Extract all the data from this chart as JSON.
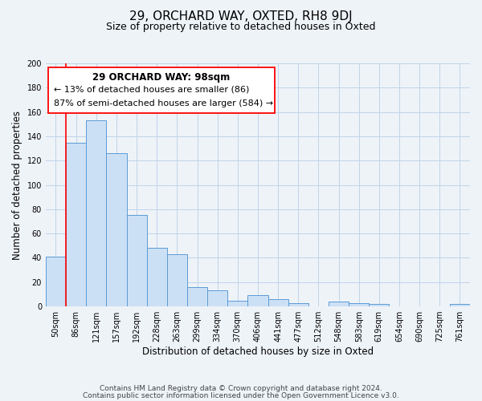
{
  "title": "29, ORCHARD WAY, OXTED, RH8 9DJ",
  "subtitle": "Size of property relative to detached houses in Oxted",
  "xlabel": "Distribution of detached houses by size in Oxted",
  "ylabel": "Number of detached properties",
  "categories": [
    "50sqm",
    "86sqm",
    "121sqm",
    "157sqm",
    "192sqm",
    "228sqm",
    "263sqm",
    "299sqm",
    "334sqm",
    "370sqm",
    "406sqm",
    "441sqm",
    "477sqm",
    "512sqm",
    "548sqm",
    "583sqm",
    "619sqm",
    "654sqm",
    "690sqm",
    "725sqm",
    "761sqm"
  ],
  "values": [
    41,
    135,
    153,
    126,
    75,
    48,
    43,
    16,
    13,
    5,
    9,
    6,
    3,
    0,
    4,
    3,
    2,
    0,
    0,
    0,
    2
  ],
  "bar_color": "#cce0f5",
  "bar_edge_color": "#5b9bd5",
  "bar_width": 1.0,
  "ylim": [
    0,
    200
  ],
  "yticks": [
    0,
    20,
    40,
    60,
    80,
    100,
    120,
    140,
    160,
    180,
    200
  ],
  "red_line_index": 1,
  "property_label": "29 ORCHARD WAY: 98sqm",
  "annotation_line1": "← 13% of detached houses are smaller (86)",
  "annotation_line2": "87% of semi-detached houses are larger (584) →",
  "footer_line1": "Contains HM Land Registry data © Crown copyright and database right 2024.",
  "footer_line2": "Contains public sector information licensed under the Open Government Licence v3.0.",
  "background_color": "#eef3f8",
  "plot_bg_color": "#eef3f8",
  "grid_color": "#c0d4e8",
  "title_fontsize": 11,
  "subtitle_fontsize": 9,
  "label_fontsize": 8.5,
  "tick_fontsize": 7,
  "footer_fontsize": 6.5,
  "annotation_fontsize": 8,
  "annotation_title_fontsize": 8.5
}
